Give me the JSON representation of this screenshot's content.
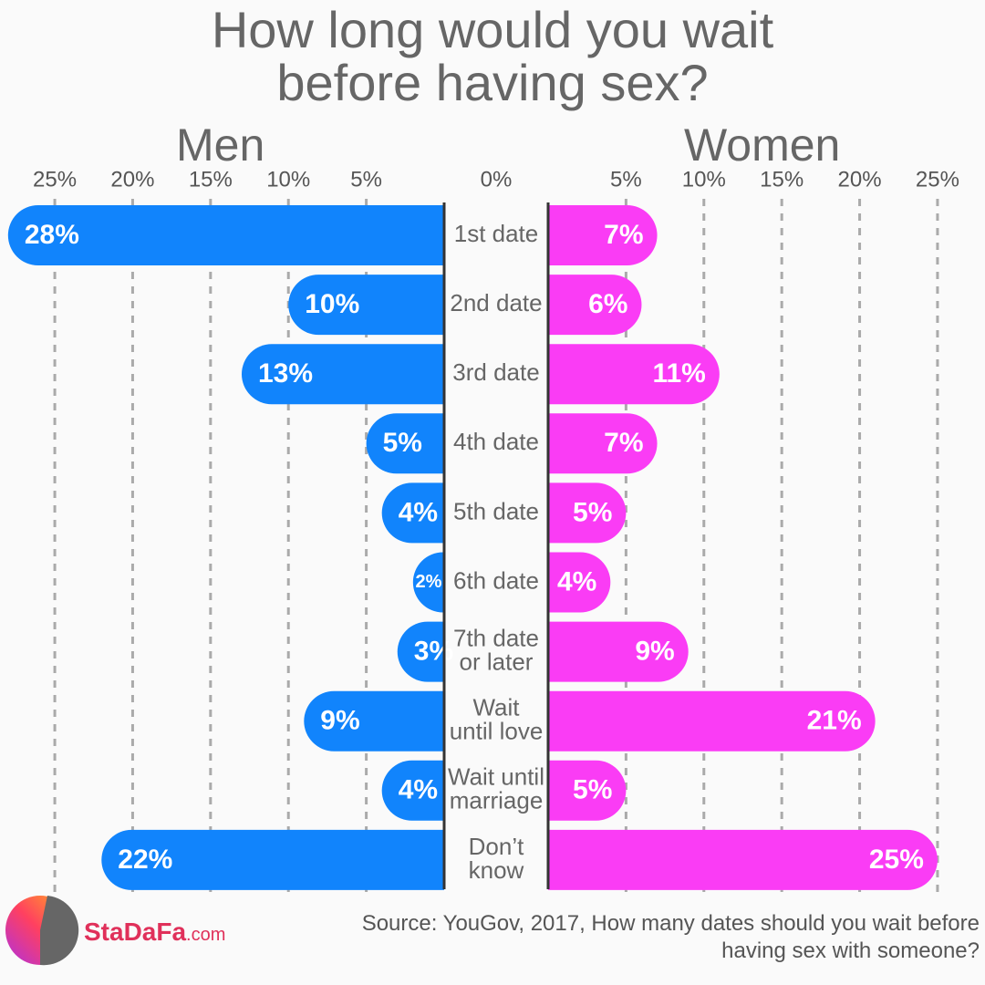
{
  "chart_data": {
    "type": "butterfly",
    "title": "How long would you wait before having sex?",
    "left_label": "Men",
    "right_label": "Women",
    "categories": [
      [
        "1st date"
      ],
      [
        "2nd date"
      ],
      [
        "3rd date"
      ],
      [
        "4th date"
      ],
      [
        "5th date"
      ],
      [
        "6th date"
      ],
      [
        "7th date",
        "or later"
      ],
      [
        "Wait",
        "until love"
      ],
      [
        "Wait until",
        "marriage"
      ],
      [
        "Don’t",
        "know"
      ]
    ],
    "series": [
      {
        "name": "Men",
        "color": "#1184fc",
        "side": "left",
        "values": [
          28,
          10,
          13,
          5,
          4,
          2,
          3,
          9,
          4,
          22
        ],
        "value_labels": [
          "28%",
          "10%",
          "13%",
          "5%",
          "4%",
          "2%",
          "3%",
          "9%",
          "4%",
          "22%"
        ]
      },
      {
        "name": "Women",
        "color": "#fa3cf5",
        "side": "right",
        "values": [
          7,
          6,
          11,
          7,
          5,
          4,
          9,
          21,
          5,
          25
        ],
        "value_labels": [
          "7%",
          "6%",
          "11%",
          "7%",
          "5%",
          "4%",
          "9%",
          "21%",
          "5%",
          "25%"
        ]
      }
    ],
    "xlim": [
      0,
      28.4
    ],
    "zero_tick": {
      "value": 0,
      "label": "0%"
    },
    "xticks": [
      {
        "value": 5,
        "label": "5%"
      },
      {
        "value": 10,
        "label": "10%"
      },
      {
        "value": 15,
        "label": "15%"
      },
      {
        "value": 20,
        "label": "20%"
      },
      {
        "value": 25,
        "label": "25%"
      }
    ],
    "grid": true,
    "source": "Source: YouGov, 2017, How many dates should you wait before having sex with someone?",
    "brand": "StaDaFa",
    "brand_suffix": ".com"
  }
}
